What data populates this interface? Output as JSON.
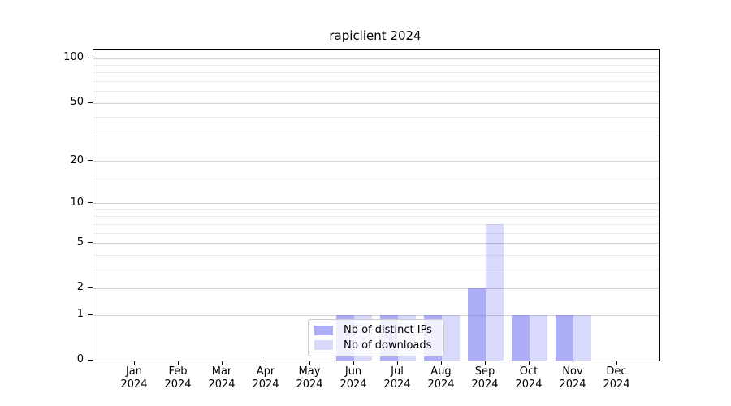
{
  "chart_data": {
    "type": "bar",
    "title": "rapiclient 2024",
    "categories": [
      "Jan",
      "Feb",
      "Mar",
      "Apr",
      "May",
      "Jun",
      "Jul",
      "Aug",
      "Sep",
      "Oct",
      "Nov",
      "Dec"
    ],
    "category_year": "2024",
    "series": [
      {
        "name": "Nb of distinct IPs",
        "color": "rgba(80,80,240,0.47)",
        "values": [
          0,
          0,
          0,
          0,
          0,
          1,
          1,
          1,
          2,
          1,
          1,
          0
        ]
      },
      {
        "name": "Nb of downloads",
        "color": "rgba(80,80,240,0.22)",
        "values": [
          0,
          0,
          0,
          0,
          0,
          1,
          1,
          1,
          7,
          1,
          1,
          0
        ]
      }
    ],
    "yscale": "log10(1+x)",
    "ylim": [
      0,
      115
    ],
    "yticks": [
      0,
      1,
      2,
      5,
      10,
      20,
      50,
      100
    ],
    "minor_yticks": [
      3,
      4,
      6,
      7,
      8,
      9,
      15,
      30,
      40,
      60,
      70,
      80,
      90
    ],
    "grid": "on",
    "legend_position": "inside-bottom-center",
    "frame_color": "#000000",
    "major_grid_color": "#d4d4d4",
    "minor_grid_color": "#ebebeb"
  }
}
